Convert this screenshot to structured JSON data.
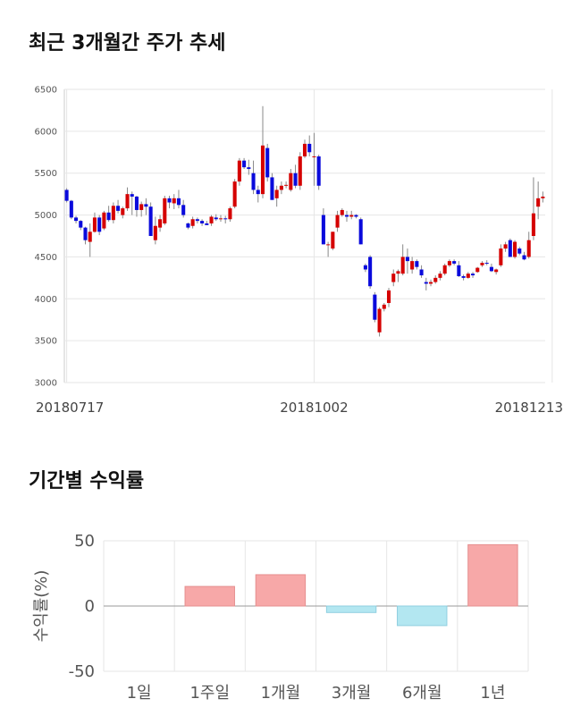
{
  "titles": {
    "price_chart": "최근 3개월간 주가 추세",
    "return_chart": "기간별 수익률"
  },
  "colors": {
    "up": "#d50000",
    "down": "#0a0adc",
    "return_positive": "#f7a8a8",
    "return_negative": "#b3e7f1",
    "grid": "#e6e6e6"
  },
  "chart_data": [
    {
      "type": "candlestick",
      "title": "최근 3개월간 주가 추세",
      "ylim": [
        3000,
        6500
      ],
      "yticks": [
        3000,
        3500,
        4000,
        4500,
        5000,
        5500,
        6000,
        6500
      ],
      "x_tick_labels": [
        "20180717",
        "20181002",
        "20181213"
      ],
      "x_tick_indices": [
        0,
        53,
        104
      ],
      "grid": true,
      "series": [
        {
          "ohlc": [
            [
              5300,
              5320,
              5150,
              5170
            ],
            [
              5170,
              5180,
              4950,
              4970
            ],
            [
              4970,
              4990,
              4900,
              4930
            ],
            [
              4930,
              4940,
              4820,
              4850
            ],
            [
              4850,
              4860,
              4650,
              4700
            ],
            [
              4680,
              4900,
              4500,
              4800
            ],
            [
              4800,
              5030,
              4790,
              4970
            ],
            [
              4970,
              5000,
              4760,
              4800
            ],
            [
              4840,
              5050,
              4820,
              5030
            ],
            [
              5030,
              5110,
              4920,
              4940
            ],
            [
              4940,
              5150,
              4900,
              5110
            ],
            [
              5110,
              5180,
              5020,
              5050
            ],
            [
              5000,
              5100,
              4960,
              5080
            ],
            [
              5080,
              5330,
              5050,
              5250
            ],
            [
              5250,
              5280,
              5000,
              5220
            ],
            [
              5220,
              5230,
              4980,
              5060
            ],
            [
              5060,
              5160,
              4980,
              5130
            ],
            [
              5130,
              5200,
              5000,
              5100
            ],
            [
              5100,
              5150,
              4750,
              4750
            ],
            [
              4700,
              4980,
              4650,
              4870
            ],
            [
              4850,
              5000,
              4800,
              4950
            ],
            [
              4900,
              5230,
              4880,
              5200
            ],
            [
              5200,
              5230,
              5080,
              5150
            ],
            [
              5140,
              5250,
              5070,
              5200
            ],
            [
              5200,
              5300,
              5080,
              5120
            ],
            [
              5120,
              5180,
              4970,
              5000
            ],
            [
              4900,
              4910,
              4830,
              4850
            ],
            [
              4870,
              4980,
              4840,
              4950
            ],
            [
              4950,
              4970,
              4900,
              4930
            ],
            [
              4930,
              4950,
              4870,
              4900
            ],
            [
              4900,
              4930,
              4880,
              4880
            ],
            [
              4900,
              5000,
              4870,
              4980
            ],
            [
              4970,
              5010,
              4930,
              4950
            ],
            [
              4950,
              5000,
              4920,
              4960
            ],
            [
              4960,
              4990,
              4900,
              4950
            ],
            [
              4950,
              5100,
              4920,
              5080
            ],
            [
              5100,
              5430,
              5080,
              5400
            ],
            [
              5400,
              5680,
              5350,
              5650
            ],
            [
              5650,
              5680,
              5550,
              5570
            ],
            [
              5570,
              5660,
              5480,
              5550
            ],
            [
              5500,
              5650,
              5250,
              5300
            ],
            [
              5300,
              5350,
              5150,
              5250
            ],
            [
              5250,
              6300,
              5200,
              5830
            ],
            [
              5800,
              5850,
              5400,
              5450
            ],
            [
              5450,
              5500,
              5180,
              5180
            ],
            [
              5200,
              5350,
              5100,
              5300
            ],
            [
              5300,
              5400,
              5250,
              5350
            ],
            [
              5350,
              5400,
              5320,
              5360
            ],
            [
              5300,
              5550,
              5280,
              5500
            ],
            [
              5500,
              5600,
              5320,
              5350
            ],
            [
              5350,
              5750,
              5300,
              5700
            ],
            [
              5700,
              5900,
              5680,
              5850
            ],
            [
              5850,
              5950,
              5700,
              5750
            ],
            [
              5700,
              5980,
              5350,
              5700
            ],
            [
              5700,
              5720,
              5300,
              5350
            ],
            [
              5000,
              5080,
              4650,
              4650
            ],
            [
              4650,
              4680,
              4500,
              4650
            ],
            [
              4600,
              4800,
              4580,
              4800
            ],
            [
              4850,
              5050,
              4800,
              5000
            ],
            [
              5000,
              5080,
              4980,
              5060
            ],
            [
              5000,
              5050,
              4920,
              4980
            ],
            [
              4980,
              5050,
              4950,
              5000
            ],
            [
              5000,
              5010,
              4960,
              4980
            ],
            [
              4950,
              4970,
              4650,
              4650
            ],
            [
              4400,
              4420,
              4320,
              4350
            ],
            [
              4500,
              4520,
              4120,
              4150
            ],
            [
              4050,
              4080,
              3720,
              3750
            ],
            [
              3600,
              3900,
              3550,
              3880
            ],
            [
              3880,
              3950,
              3850,
              3930
            ],
            [
              3950,
              4130,
              3900,
              4100
            ],
            [
              4200,
              4350,
              4150,
              4300
            ],
            [
              4300,
              4350,
              4200,
              4330
            ],
            [
              4300,
              4650,
              4280,
              4500
            ],
            [
              4500,
              4600,
              4300,
              4450
            ],
            [
              4350,
              4500,
              4300,
              4450
            ],
            [
              4450,
              4470,
              4350,
              4380
            ],
            [
              4350,
              4400,
              4250,
              4280
            ],
            [
              4200,
              4250,
              4100,
              4180
            ],
            [
              4180,
              4230,
              4150,
              4200
            ],
            [
              4200,
              4280,
              4180,
              4250
            ],
            [
              4250,
              4330,
              4220,
              4300
            ],
            [
              4300,
              4420,
              4280,
              4400
            ],
            [
              4400,
              4470,
              4380,
              4450
            ],
            [
              4450,
              4470,
              4400,
              4420
            ],
            [
              4400,
              4450,
              4260,
              4270
            ],
            [
              4270,
              4290,
              4220,
              4250
            ],
            [
              4250,
              4320,
              4240,
              4300
            ],
            [
              4300,
              4320,
              4250,
              4280
            ],
            [
              4320,
              4380,
              4310,
              4370
            ],
            [
              4400,
              4450,
              4380,
              4430
            ],
            [
              4430,
              4460,
              4400,
              4420
            ],
            [
              4380,
              4420,
              4320,
              4330
            ],
            [
              4320,
              4360,
              4290,
              4350
            ],
            [
              4400,
              4650,
              4380,
              4600
            ],
            [
              4600,
              4680,
              4560,
              4650
            ],
            [
              4700,
              4720,
              4500,
              4500
            ],
            [
              4500,
              4700,
              4480,
              4680
            ],
            [
              4600,
              4620,
              4520,
              4540
            ],
            [
              4520,
              4560,
              4460,
              4470
            ],
            [
              4500,
              4800,
              4480,
              4700
            ],
            [
              4750,
              5450,
              4700,
              5020
            ],
            [
              5100,
              5400,
              4950,
              5200
            ],
            [
              5200,
              5280,
              5150,
              5220
            ]
          ]
        }
      ]
    },
    {
      "type": "bar",
      "title": "기간별 수익률",
      "ylabel": "수익률(%)",
      "ylim": [
        -50,
        50
      ],
      "yticks": [
        50,
        0,
        -50
      ],
      "categories": [
        "1일",
        "1주일",
        "1개월",
        "3개월",
        "6개월",
        "1년"
      ],
      "values": [
        0,
        15,
        24,
        -5,
        -15,
        47
      ],
      "grid": true
    }
  ]
}
